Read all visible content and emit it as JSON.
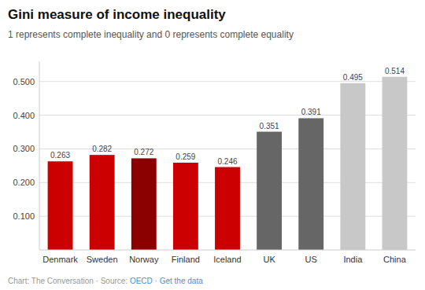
{
  "chart_data": {
    "type": "bar",
    "title": "Gini measure of income inequality",
    "subtitle": "1 represents complete inequality and 0 represents complete equality",
    "categories": [
      "Denmark",
      "Sweden",
      "Norway",
      "Finland",
      "Iceland",
      "UK",
      "US",
      "India",
      "China"
    ],
    "values": [
      0.263,
      0.282,
      0.272,
      0.259,
      0.246,
      0.351,
      0.391,
      0.495,
      0.514
    ],
    "colors": [
      "#cc0000",
      "#cc0000",
      "#8b0000",
      "#cc0000",
      "#cc0000",
      "#666666",
      "#666666",
      "#c8c8c8",
      "#c8c8c8"
    ],
    "ylim": [
      0,
      0.56
    ],
    "yticks": [
      {
        "value": 0.1,
        "label": "0.100"
      },
      {
        "value": 0.2,
        "label": "0.200"
      },
      {
        "value": 0.3,
        "label": "0.300"
      },
      {
        "value": 0.4,
        "label": "0.400"
      },
      {
        "value": 0.5,
        "label": "0.500"
      }
    ],
    "grid": true,
    "data_labels": true,
    "footer": [
      {
        "text": "Chart: The Conversation · Source: ",
        "color": "#999999"
      },
      {
        "text": "OECD",
        "color": "#4a90d9"
      },
      {
        "text": " · ",
        "color": "#999999"
      },
      {
        "text": "Get the data",
        "color": "#4a90d9"
      }
    ]
  }
}
